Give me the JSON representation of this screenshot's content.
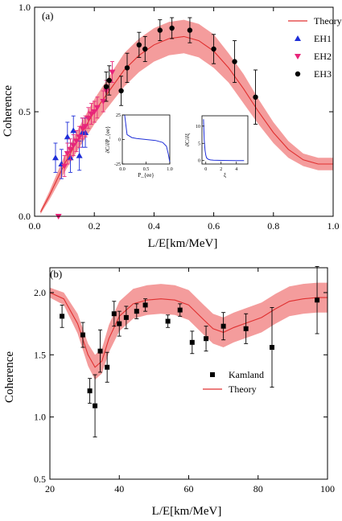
{
  "chart_data": [
    {
      "panel_label": "(a)",
      "type": "scatter",
      "xlabel": "L/E[km/MeV]",
      "ylabel": "Coherence",
      "xlim": [
        0.0,
        1.0
      ],
      "ylim": [
        0.0,
        1.0
      ],
      "x_ticks": [
        "0.0",
        "0.2",
        "0.4",
        "0.6",
        "0.8",
        "1.0"
      ],
      "y_ticks": [
        "0.0",
        "0.5",
        "1.0"
      ],
      "legend_position": "top-right",
      "theory": {
        "name": "Theory",
        "color": "#e03030",
        "band_color": "#f28b8b",
        "x": [
          0.02,
          0.05,
          0.1,
          0.15,
          0.2,
          0.25,
          0.3,
          0.35,
          0.4,
          0.45,
          0.5,
          0.55,
          0.6,
          0.65,
          0.7,
          0.75,
          0.8,
          0.85,
          0.9,
          0.95,
          1.0
        ],
        "y": [
          0.02,
          0.1,
          0.25,
          0.38,
          0.5,
          0.6,
          0.7,
          0.77,
          0.82,
          0.85,
          0.86,
          0.84,
          0.79,
          0.71,
          0.61,
          0.5,
          0.4,
          0.32,
          0.27,
          0.25,
          0.25
        ],
        "band_half_width": [
          0.01,
          0.02,
          0.04,
          0.05,
          0.06,
          0.07,
          0.08,
          0.08,
          0.08,
          0.08,
          0.08,
          0.08,
          0.08,
          0.07,
          0.07,
          0.06,
          0.05,
          0.04,
          0.03,
          0.03,
          0.03
        ]
      },
      "series": [
        {
          "name": "EH1",
          "marker": "triangle-up",
          "color": "#1f2fd8",
          "points": [
            {
              "x": 0.07,
              "y": 0.28,
              "err": 0.07
            },
            {
              "x": 0.09,
              "y": 0.25,
              "err": 0.07
            },
            {
              "x": 0.11,
              "y": 0.38,
              "err": 0.07
            },
            {
              "x": 0.12,
              "y": 0.28,
              "err": 0.07
            },
            {
              "x": 0.13,
              "y": 0.41,
              "err": 0.07
            },
            {
              "x": 0.15,
              "y": 0.29,
              "err": 0.07
            },
            {
              "x": 0.16,
              "y": 0.4,
              "err": 0.07
            },
            {
              "x": 0.17,
              "y": 0.4,
              "err": 0.07
            }
          ]
        },
        {
          "name": "EH2",
          "marker": "triangle-down",
          "color": "#e8257a",
          "points": [
            {
              "x": 0.08,
              "y": 0.0,
              "err": 0.0
            },
            {
              "x": 0.1,
              "y": 0.24,
              "err": 0.05
            },
            {
              "x": 0.11,
              "y": 0.3,
              "err": 0.05
            },
            {
              "x": 0.12,
              "y": 0.32,
              "err": 0.05
            },
            {
              "x": 0.13,
              "y": 0.34,
              "err": 0.05
            },
            {
              "x": 0.14,
              "y": 0.36,
              "err": 0.05
            },
            {
              "x": 0.15,
              "y": 0.38,
              "err": 0.05
            },
            {
              "x": 0.16,
              "y": 0.42,
              "err": 0.05
            },
            {
              "x": 0.17,
              "y": 0.43,
              "err": 0.05
            },
            {
              "x": 0.18,
              "y": 0.47,
              "err": 0.05
            },
            {
              "x": 0.19,
              "y": 0.49,
              "err": 0.05
            },
            {
              "x": 0.2,
              "y": 0.5,
              "err": 0.05
            },
            {
              "x": 0.21,
              "y": 0.52,
              "err": 0.05
            },
            {
              "x": 0.23,
              "y": 0.55,
              "err": 0.05
            },
            {
              "x": 0.24,
              "y": 0.6,
              "err": 0.05
            },
            {
              "x": 0.26,
              "y": 0.69,
              "err": 0.05
            }
          ]
        },
        {
          "name": "EH3",
          "marker": "circle",
          "color": "#000000",
          "points": [
            {
              "x": 0.24,
              "y": 0.62,
              "err": 0.07
            },
            {
              "x": 0.25,
              "y": 0.65,
              "err": 0.07
            },
            {
              "x": 0.29,
              "y": 0.6,
              "err": 0.07
            },
            {
              "x": 0.31,
              "y": 0.71,
              "err": 0.07
            },
            {
              "x": 0.35,
              "y": 0.82,
              "err": 0.06
            },
            {
              "x": 0.37,
              "y": 0.8,
              "err": 0.06
            },
            {
              "x": 0.42,
              "y": 0.89,
              "err": 0.05
            },
            {
              "x": 0.46,
              "y": 0.9,
              "err": 0.05
            },
            {
              "x": 0.52,
              "y": 0.89,
              "err": 0.06
            },
            {
              "x": 0.6,
              "y": 0.8,
              "err": 0.07
            },
            {
              "x": 0.67,
              "y": 0.74,
              "err": 0.1
            },
            {
              "x": 0.74,
              "y": 0.57,
              "err": 0.13
            }
          ]
        }
      ],
      "insets": [
        {
          "xlabel": "P_{ee}",
          "ylabel": "∂C/∂P_{ee}",
          "x_ticks": [
            "0.0",
            "0.5",
            "1.0"
          ],
          "y_ticks": [
            "-25",
            "0",
            "25"
          ],
          "xlim": [
            0.0,
            1.0
          ],
          "ylim": [
            -25,
            25
          ],
          "color": "#1f2fd8",
          "x": [
            0.05,
            0.1,
            0.2,
            0.3,
            0.5,
            0.7,
            0.85,
            0.93,
            0.97,
            1.0
          ],
          "y": [
            25,
            5,
            2,
            1,
            0,
            -1,
            -3,
            -7,
            -15,
            -23
          ]
        },
        {
          "xlabel": "ξ",
          "ylabel": "∂C/∂ξ",
          "x_ticks": [
            "0",
            "2",
            "4"
          ],
          "y_ticks": [
            "0",
            "5",
            "10"
          ],
          "xlim": [
            -0.5,
            5.5
          ],
          "ylim": [
            -1,
            13
          ],
          "color": "#1f2fd8",
          "x": [
            -0.3,
            -0.2,
            -0.1,
            0.0,
            0.1,
            0.3,
            0.6,
            1.0,
            2.0,
            3.0,
            4.0,
            5.0
          ],
          "y": [
            12,
            6,
            3,
            1.5,
            0.8,
            0.4,
            0.2,
            0.1,
            0.05,
            0.02,
            0.01,
            0.0
          ]
        }
      ]
    },
    {
      "panel_label": "(b)",
      "type": "scatter",
      "xlabel": "L/E[km/MeV]",
      "ylabel": "Coherence",
      "xlim": [
        20,
        100
      ],
      "ylim": [
        0.5,
        2.2
      ],
      "x_ticks": [
        "20",
        "40",
        "60",
        "80",
        "100"
      ],
      "y_ticks": [
        "0.5",
        "1.0",
        "1.5",
        "2.0"
      ],
      "legend_position": "center-right",
      "theory": {
        "name": "Theory",
        "color": "#e03030",
        "band_color": "#f28b8b",
        "x": [
          20,
          24,
          28,
          31,
          33,
          35,
          37,
          40,
          44,
          48,
          52,
          56,
          60,
          64,
          67,
          70,
          73,
          77,
          81,
          85,
          89,
          93,
          97,
          100
        ],
        "y": [
          2.0,
          1.95,
          1.75,
          1.5,
          1.4,
          1.45,
          1.63,
          1.81,
          1.91,
          1.94,
          1.95,
          1.94,
          1.9,
          1.79,
          1.71,
          1.68,
          1.72,
          1.76,
          1.8,
          1.87,
          1.93,
          1.95,
          1.96,
          1.96
        ],
        "band_half_width": [
          0.04,
          0.05,
          0.08,
          0.09,
          0.1,
          0.1,
          0.11,
          0.12,
          0.12,
          0.12,
          0.12,
          0.12,
          0.12,
          0.12,
          0.12,
          0.12,
          0.12,
          0.12,
          0.12,
          0.12,
          0.12,
          0.12,
          0.12,
          0.12
        ]
      },
      "series": [
        {
          "name": "Kamland",
          "marker": "square",
          "color": "#000000",
          "points": [
            {
              "x": 23.5,
              "y": 1.81,
              "err": 0.09
            },
            {
              "x": 29.5,
              "y": 1.66,
              "err": 0.1
            },
            {
              "x": 31.5,
              "y": 1.21,
              "err": 0.1
            },
            {
              "x": 33.0,
              "y": 1.09,
              "err": 0.25
            },
            {
              "x": 34.5,
              "y": 1.53,
              "err": 0.17
            },
            {
              "x": 36.5,
              "y": 1.4,
              "err": 0.12
            },
            {
              "x": 38.5,
              "y": 1.83,
              "err": 0.1
            },
            {
              "x": 40.0,
              "y": 1.75,
              "err": 0.1
            },
            {
              "x": 42.0,
              "y": 1.8,
              "err": 0.09
            },
            {
              "x": 45.0,
              "y": 1.85,
              "err": 0.06
            },
            {
              "x": 47.5,
              "y": 1.9,
              "err": 0.05
            },
            {
              "x": 54.0,
              "y": 1.77,
              "err": 0.05
            },
            {
              "x": 57.5,
              "y": 1.86,
              "err": 0.05
            },
            {
              "x": 61.0,
              "y": 1.6,
              "err": 0.09
            },
            {
              "x": 65.0,
              "y": 1.63,
              "err": 0.1
            },
            {
              "x": 70.0,
              "y": 1.73,
              "err": 0.11
            },
            {
              "x": 76.5,
              "y": 1.71,
              "err": 0.12
            },
            {
              "x": 84.0,
              "y": 1.56,
              "err": 0.32
            },
            {
              "x": 97.0,
              "y": 1.94,
              "err": 0.27
            }
          ]
        }
      ]
    }
  ]
}
